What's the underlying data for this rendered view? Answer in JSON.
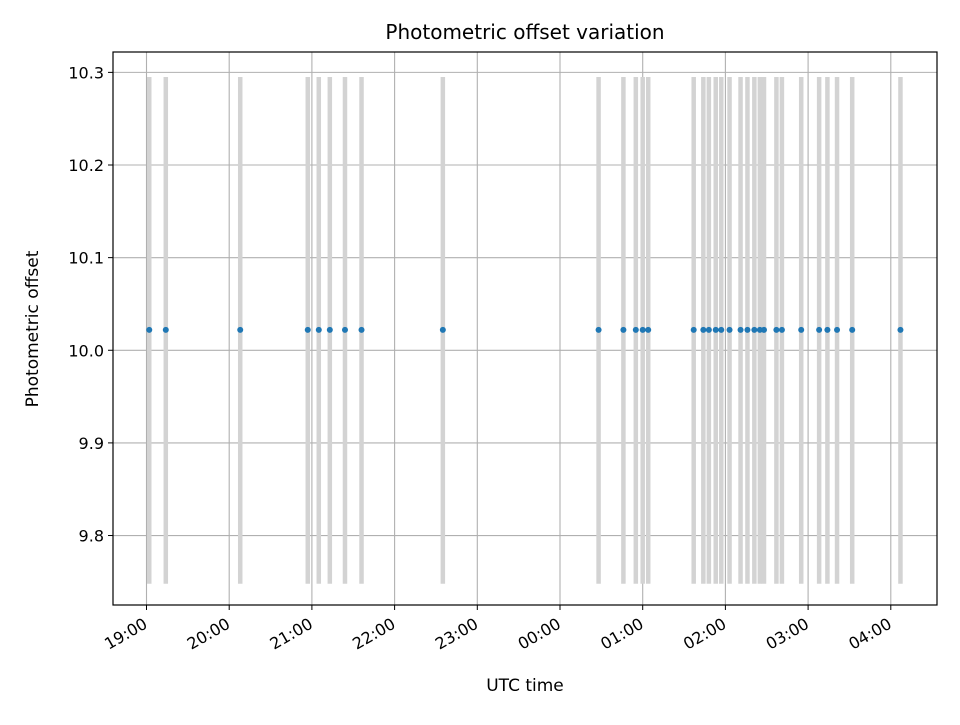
{
  "chart_data": {
    "type": "scatter",
    "title": "Photometric offset variation",
    "xlabel": "UTC time",
    "ylabel": "Photometric offset",
    "x_ticks": [
      "19:00",
      "20:00",
      "21:00",
      "22:00",
      "23:00",
      "00:00",
      "01:00",
      "02:00",
      "03:00",
      "04:00"
    ],
    "y_ticks": [
      "9.8",
      "9.9",
      "10.0",
      "10.1",
      "10.2",
      "10.3"
    ],
    "ylim": [
      9.725,
      10.322
    ],
    "grid": true,
    "marker_color": "#1f77b4",
    "band_color": "#d3d3d3",
    "series": [
      {
        "x": [
          "19:02",
          "19:14",
          "20:08",
          "20:57",
          "21:05",
          "21:13",
          "21:24",
          "21:36",
          "22:35",
          "00:28",
          "00:46",
          "00:55",
          "01:00",
          "01:04",
          "01:37",
          "01:44",
          "01:48",
          "01:53",
          "01:57",
          "02:03",
          "02:11",
          "02:16",
          "02:21",
          "02:25",
          "02:28",
          "02:37",
          "02:41",
          "02:55",
          "03:08",
          "03:14",
          "03:21",
          "03:32",
          "04:07"
        ],
        "y": [
          10.022,
          10.022,
          10.022,
          10.022,
          10.022,
          10.022,
          10.022,
          10.022,
          10.022,
          10.022,
          10.022,
          10.022,
          10.022,
          10.022,
          10.022,
          10.022,
          10.022,
          10.022,
          10.022,
          10.022,
          10.022,
          10.022,
          10.022,
          10.022,
          10.022,
          10.022,
          10.022,
          10.022,
          10.022,
          10.022,
          10.022,
          10.022,
          10.022
        ],
        "y_low": 9.748,
        "y_high": 10.295
      }
    ]
  }
}
